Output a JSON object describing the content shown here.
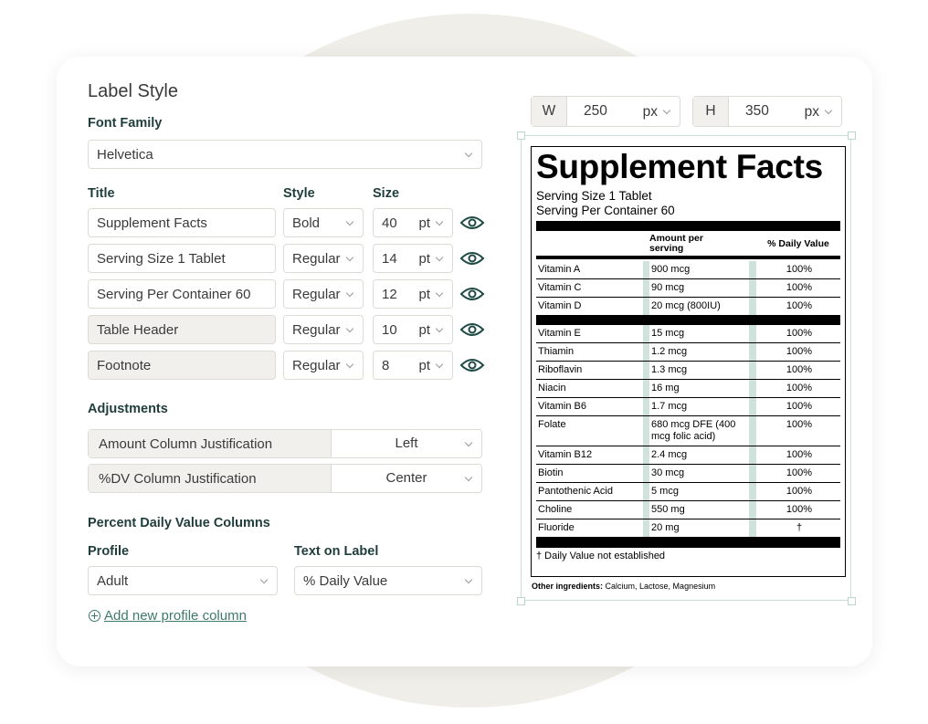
{
  "label_style": {
    "title": "Label Style",
    "font_family_label": "Font Family",
    "font_family": "Helvetica",
    "columns": [
      "Title",
      "Style",
      "Size"
    ],
    "rows": [
      {
        "title": "Supplement Facts",
        "style": "Bold",
        "size": 40,
        "unit": "pt"
      },
      {
        "title": "Serving Size 1 Tablet",
        "style": "Regular",
        "size": 14,
        "unit": "pt"
      },
      {
        "title": "Serving Per Container 60",
        "style": "Regular",
        "size": 12,
        "unit": "pt"
      },
      {
        "title": "Table Header",
        "style": "Regular",
        "size": 10,
        "unit": "pt"
      },
      {
        "title": "Footnote",
        "style": "Regular",
        "size": 8,
        "unit": "pt"
      }
    ],
    "adjustments_title": "Adjustments",
    "adjustments": [
      {
        "label": "Amount Column Justification",
        "value": "Left"
      },
      {
        "label": "%DV Column Justification",
        "value": "Center"
      }
    ],
    "dv_title": "Percent Daily Value Columns",
    "profile_label": "Profile",
    "text_label": "Text on Label",
    "profile": "Adult",
    "text": "% Daily Value",
    "add_link": "Add new profile column"
  },
  "canvas": {
    "w_label": "W",
    "w": 250,
    "w_unit": "px",
    "h_label": "H",
    "h": 350,
    "h_unit": "px"
  },
  "facts": {
    "title": "Supplement Facts",
    "serving_size": "Serving Size 1 Tablet",
    "servings": "Serving Per Container 60",
    "header": [
      "Amount per serving",
      "% Daily Value"
    ],
    "groups": [
      [
        [
          "Vitamin A",
          "900 mcg",
          "100%"
        ],
        [
          "Vitamin C",
          "90 mcg",
          "100%"
        ],
        [
          "Vitamin D",
          "20 mcg (800IU)",
          "100%"
        ]
      ],
      [
        [
          "Vitamin E",
          "15 mcg",
          "100%"
        ],
        [
          "Thiamin",
          "1.2 mcg",
          "100%"
        ],
        [
          "Riboflavin",
          "1.3 mcg",
          "100%"
        ],
        [
          "Niacin",
          "16 mg",
          "100%"
        ],
        [
          "Vitamin B6",
          "1.7 mcg",
          "100%"
        ],
        [
          "Folate",
          "680 mcg DFE (400 mcg folic acid)",
          "100%"
        ],
        [
          "Vitamin B12",
          "2.4 mcg",
          "100%"
        ],
        [
          "Biotin",
          "30 mcg",
          "100%"
        ],
        [
          "Pantothenic Acid",
          "5 mcg",
          "100%"
        ],
        [
          "Choline",
          "550 mg",
          "100%"
        ],
        [
          "Fluoride",
          "20 mg",
          "†"
        ]
      ]
    ],
    "footnote": "† Daily Value not established",
    "other_label": "Other ingredients:",
    "other": "Calcium, Lactose, Magnesium"
  }
}
